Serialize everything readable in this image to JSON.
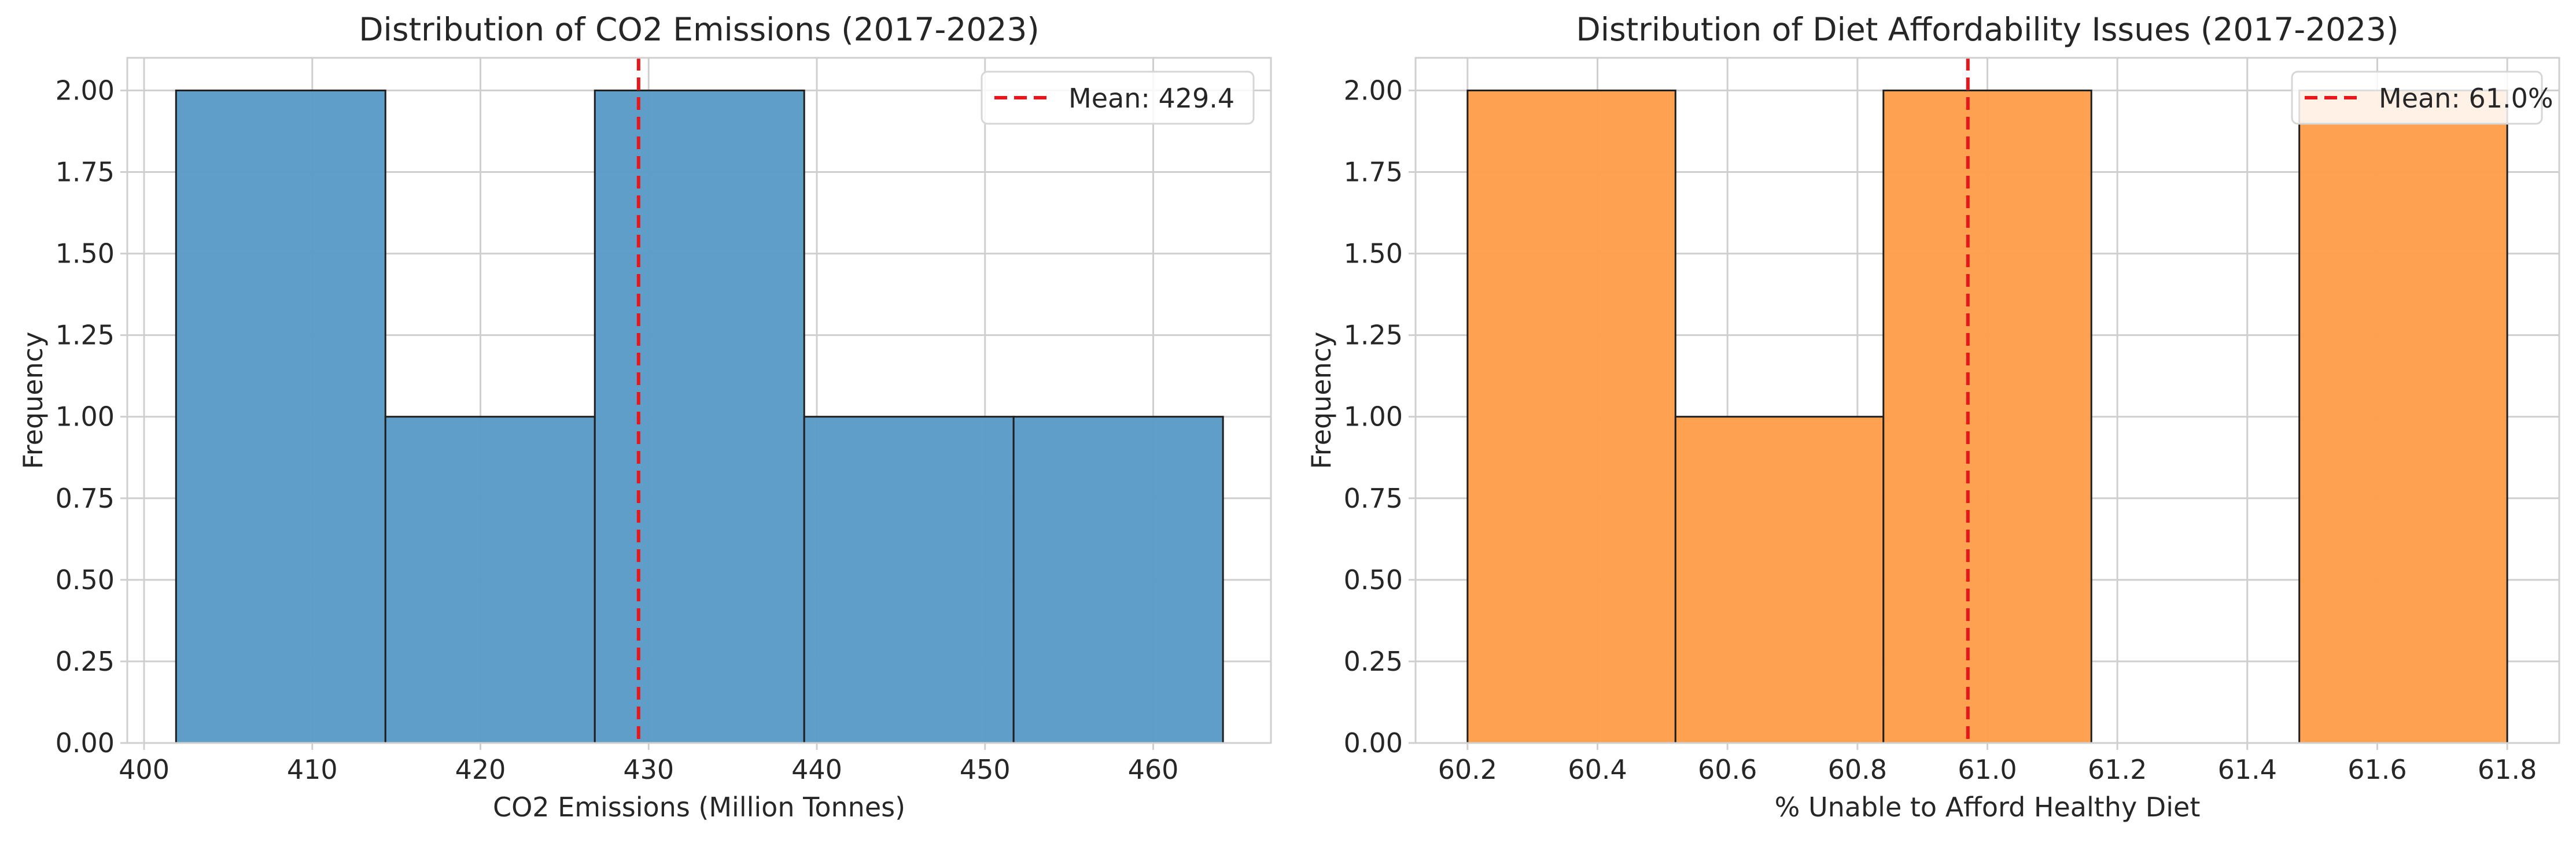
{
  "chart_data": [
    {
      "type": "histogram",
      "title": "Distribution of CO2 Emissions (2017-2023)",
      "xlabel": "CO2 Emissions (Million Tonnes)",
      "ylabel": "Frequency",
      "bins": [
        {
          "start": 401.9,
          "end": 414.35,
          "count": 2
        },
        {
          "start": 414.35,
          "end": 426.8,
          "count": 1
        },
        {
          "start": 426.8,
          "end": 439.25,
          "count": 2
        },
        {
          "start": 439.25,
          "end": 451.7,
          "count": 1
        },
        {
          "start": 451.7,
          "end": 464.15,
          "count": 1
        }
      ],
      "xlim": [
        399.0,
        467.0
      ],
      "ylim": [
        0,
        2.1
      ],
      "xticks": [
        400,
        410,
        420,
        430,
        440,
        450,
        460
      ],
      "xtick_labels": [
        "400",
        "410",
        "420",
        "430",
        "440",
        "450",
        "460"
      ],
      "yticks": [
        0,
        0.25,
        0.5,
        0.75,
        1.0,
        1.25,
        1.5,
        1.75,
        2.0
      ],
      "ytick_labels": [
        "0.00",
        "0.25",
        "0.50",
        "0.75",
        "1.00",
        "1.25",
        "1.50",
        "1.75",
        "2.00"
      ],
      "mean_value": 429.4,
      "legend_label": "Mean: 429.4",
      "legend_position": "upper right",
      "grid": true,
      "color": "#5b9bc8",
      "mean_color": "#e8161b"
    },
    {
      "type": "histogram",
      "title": "Distribution of Diet Affordability Issues (2017-2023)",
      "xlabel": "% Unable to Afford Healthy Diet",
      "ylabel": "Frequency",
      "bins": [
        {
          "start": 60.2,
          "end": 60.52,
          "count": 2
        },
        {
          "start": 60.52,
          "end": 60.84,
          "count": 1
        },
        {
          "start": 60.84,
          "end": 61.16,
          "count": 2
        },
        {
          "start": 61.16,
          "end": 61.48,
          "count": 0
        },
        {
          "start": 61.48,
          "end": 61.8,
          "count": 2
        }
      ],
      "xlim": [
        60.12,
        61.88
      ],
      "ylim": [
        0,
        2.1
      ],
      "xticks": [
        60.2,
        60.4,
        60.6,
        60.8,
        61.0,
        61.2,
        61.4,
        61.6,
        61.8
      ],
      "xtick_labels": [
        "60.2",
        "60.4",
        "60.6",
        "60.8",
        "61.0",
        "61.2",
        "61.4",
        "61.6",
        "61.8"
      ],
      "yticks": [
        0,
        0.25,
        0.5,
        0.75,
        1.0,
        1.25,
        1.5,
        1.75,
        2.0
      ],
      "ytick_labels": [
        "0.00",
        "0.25",
        "0.50",
        "0.75",
        "1.00",
        "1.25",
        "1.50",
        "1.75",
        "2.00"
      ],
      "mean_value": 60.97,
      "legend_label": "Mean: 61.0%",
      "legend_position": "upper right",
      "grid": true,
      "color": "#fe9f4b",
      "mean_color": "#e8161b"
    }
  ]
}
